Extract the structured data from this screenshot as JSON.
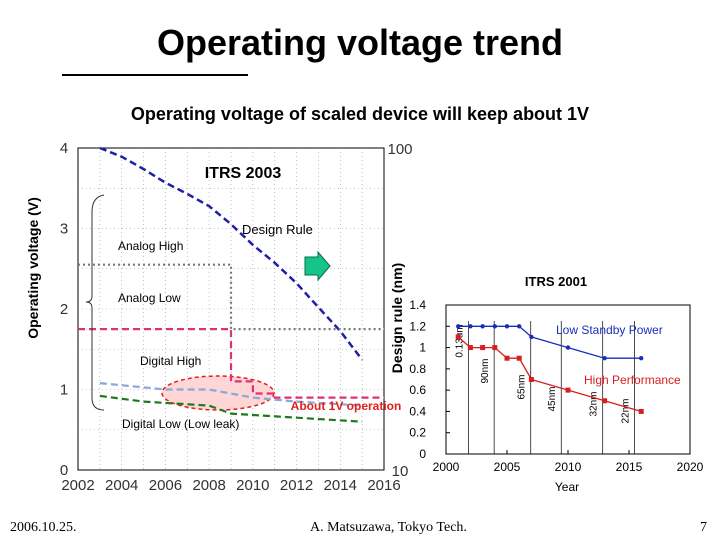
{
  "slide": {
    "title": "Operating voltage trend",
    "subtitle": "Operating voltage of scaled device will keep about 1V",
    "footer_date": "2006.10.25.",
    "footer_author": "A. Matsuzawa, Tokyo Tech.",
    "page_number": "7"
  },
  "chart_data": [
    {
      "type": "line",
      "title": "ITRS 2003",
      "xlabel": "",
      "ylabel": "Operating voltage (V)",
      "y2label": "Design rule (nm)",
      "x_ticks": [
        "2002",
        "2004",
        "2006",
        "2008",
        "2010",
        "2012",
        "2014",
        "2016"
      ],
      "y_ticks": [
        "0",
        "1",
        "2",
        "3",
        "4"
      ],
      "y2_ticks": [
        "10",
        "100"
      ],
      "xlim": [
        2002,
        2016
      ],
      "ylim": [
        0,
        4
      ],
      "y2_scale": "log",
      "y2lim": [
        10,
        100
      ],
      "grid": true,
      "series": [
        {
          "name": "Design Rule",
          "axis": "y2",
          "color": "#1f1fa8",
          "style": "dashed",
          "x": [
            2003,
            2004,
            2005,
            2006,
            2007,
            2008,
            2009,
            2010,
            2011,
            2012,
            2013,
            2014,
            2015
          ],
          "values": [
            100,
            94,
            86,
            78,
            72,
            66,
            58,
            50,
            44,
            38,
            32,
            27,
            22
          ]
        },
        {
          "name": "Analog High",
          "color": "#777777",
          "style": "dotted",
          "x": [
            2002,
            2009,
            2009,
            2016
          ],
          "values": [
            2.55,
            2.55,
            1.75,
            1.75
          ]
        },
        {
          "name": "Analog Low",
          "color": "#e0307a",
          "style": "dashed",
          "x": [
            2002,
            2009,
            2009,
            2010,
            2010,
            2011,
            2011,
            2016
          ],
          "values": [
            1.75,
            1.75,
            1.1,
            1.1,
            0.95,
            0.95,
            0.9,
            0.9
          ]
        },
        {
          "name": "Digital High",
          "color": "#8aa7d8",
          "style": "dashed",
          "x": [
            2003,
            2006,
            2008,
            2010,
            2012,
            2015
          ],
          "values": [
            1.08,
            1.0,
            1.0,
            0.9,
            0.85,
            0.8
          ]
        },
        {
          "name": "Digital Low (Low leak)",
          "color": "#1f7a1f",
          "style": "dashed",
          "x": [
            2003,
            2005,
            2008,
            2009,
            2012,
            2015
          ],
          "values": [
            0.92,
            0.85,
            0.8,
            0.7,
            0.65,
            0.6
          ]
        }
      ],
      "annotations": [
        "About 1V operation",
        "Design Rule"
      ]
    },
    {
      "type": "line",
      "title": "ITRS 2001",
      "xlabel": "Year",
      "ylabel": "",
      "x_ticks": [
        "2000",
        "2005",
        "2010",
        "2015",
        "2020"
      ],
      "y_ticks": [
        "0",
        "0.2",
        "0.4",
        "0.6",
        "0.8",
        "1",
        "1.2",
        "1.4"
      ],
      "xlim": [
        2000,
        2020
      ],
      "ylim": [
        0,
        1.4
      ],
      "series": [
        {
          "name": "Low Standby Power",
          "color": "#1a2fb8",
          "x": [
            2001,
            2002,
            2003,
            2004,
            2005,
            2006,
            2007,
            2010,
            2013,
            2016
          ],
          "values": [
            1.2,
            1.2,
            1.2,
            1.2,
            1.2,
            1.2,
            1.1,
            1.0,
            0.9,
            0.9
          ]
        },
        {
          "name": "High Performance",
          "color": "#d81f1f",
          "x": [
            2001,
            2002,
            2003,
            2004,
            2005,
            2006,
            2007,
            2010,
            2013,
            2016
          ],
          "values": [
            1.1,
            1.0,
            1.0,
            1.0,
            0.9,
            0.9,
            0.7,
            0.6,
            0.5,
            0.4
          ]
        }
      ],
      "node_labels": [
        "0.13um",
        "90nm",
        "65nm",
        "45nm",
        "32nm",
        "22nm"
      ]
    }
  ]
}
